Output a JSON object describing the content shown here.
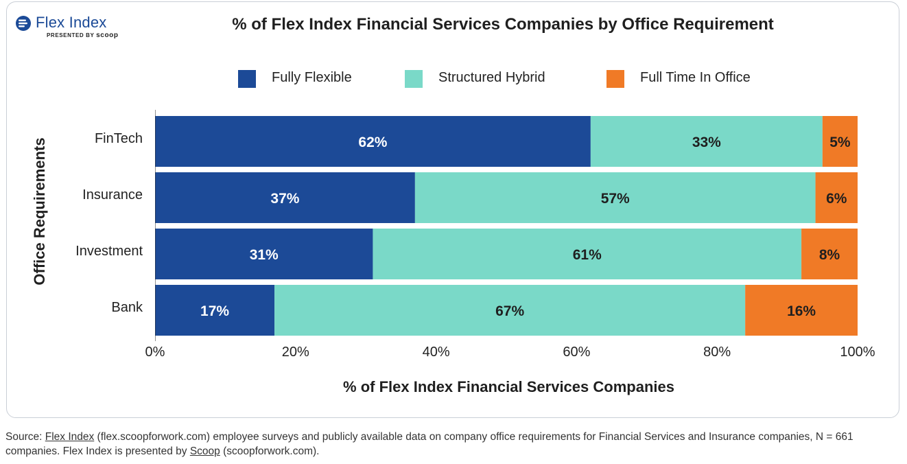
{
  "brand": {
    "name": "Flex Index",
    "presented_by": "PRESENTED BY",
    "presenter": "scoop",
    "color": "#1b4a97"
  },
  "chart_data": {
    "type": "bar",
    "orientation": "horizontal",
    "stacked": true,
    "title": "% of Flex Index Financial Services Companies by Office Requirement",
    "xlabel": "% of Flex Index Financial Services Companies",
    "ylabel": "Office Requirements",
    "categories": [
      "FinTech",
      "Insurance",
      "Investment",
      "Bank"
    ],
    "series": [
      {
        "name": "Fully Flexible",
        "color": "#1c4a97",
        "values": [
          62,
          37,
          31,
          17
        ],
        "labels": [
          "62%",
          "37%",
          "31%",
          "17%"
        ]
      },
      {
        "name": "Structured Hybrid",
        "color": "#7ad9c8",
        "values": [
          33,
          57,
          61,
          67
        ],
        "labels": [
          "33%",
          "57%",
          "61%",
          "67%"
        ]
      },
      {
        "name": "Full Time In Office",
        "color": "#f07a26",
        "values": [
          5,
          6,
          8,
          16
        ],
        "labels": [
          "5%",
          "6%",
          "8%",
          "16%"
        ]
      }
    ],
    "xlim": [
      0,
      100
    ],
    "xticks": [
      0,
      20,
      40,
      60,
      80,
      100
    ],
    "xtick_labels": [
      "0%",
      "20%",
      "40%",
      "60%",
      "80%",
      "100%"
    ],
    "legend_position": "top",
    "grid": false
  },
  "footer": {
    "source_prefix": "Source: ",
    "link1": "Flex Index",
    "text1": " (flex.scoopforwork.com) employee surveys and publicly available data on company office requirements for Financial Services and Insurance companies, N = 661 companies. Flex Index is presented by ",
    "link2": "Scoop",
    "text2": " (scoopforwork.com)."
  }
}
